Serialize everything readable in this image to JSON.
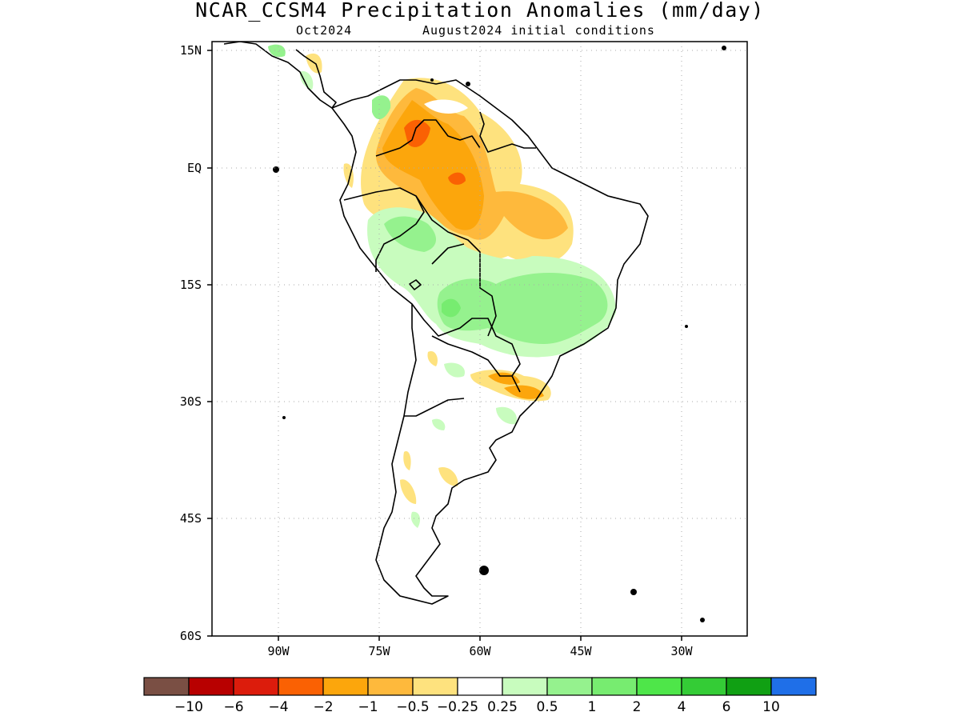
{
  "header": {
    "title": "NCAR_CCSM4 Precipitation Anomalies (mm/day)",
    "left_subtitle": "Oct2024",
    "right_subtitle": "August2024 initial conditions"
  },
  "map": {
    "lat_labels": [
      "15N",
      "EQ",
      "15S",
      "30S",
      "45S",
      "60S"
    ],
    "lon_labels": [
      "90W",
      "75W",
      "60W",
      "45W",
      "30W"
    ]
  },
  "colorbar": {
    "colors": [
      "#7a4f44",
      "#b80000",
      "#dc1c0c",
      "#fa6103",
      "#fca60c",
      "#feb93c",
      "#fee27e",
      "#ffffff",
      "#c8fcbe",
      "#95f28e",
      "#77ec70",
      "#4ee649",
      "#34cc36",
      "#10a013",
      "#1f6fe8"
    ],
    "labels": [
      "−10",
      "−6",
      "−4",
      "−2",
      "−1",
      "−0.5",
      "−0.25",
      "0.25",
      "0.5",
      "1",
      "2",
      "4",
      "6",
      "10"
    ]
  }
}
